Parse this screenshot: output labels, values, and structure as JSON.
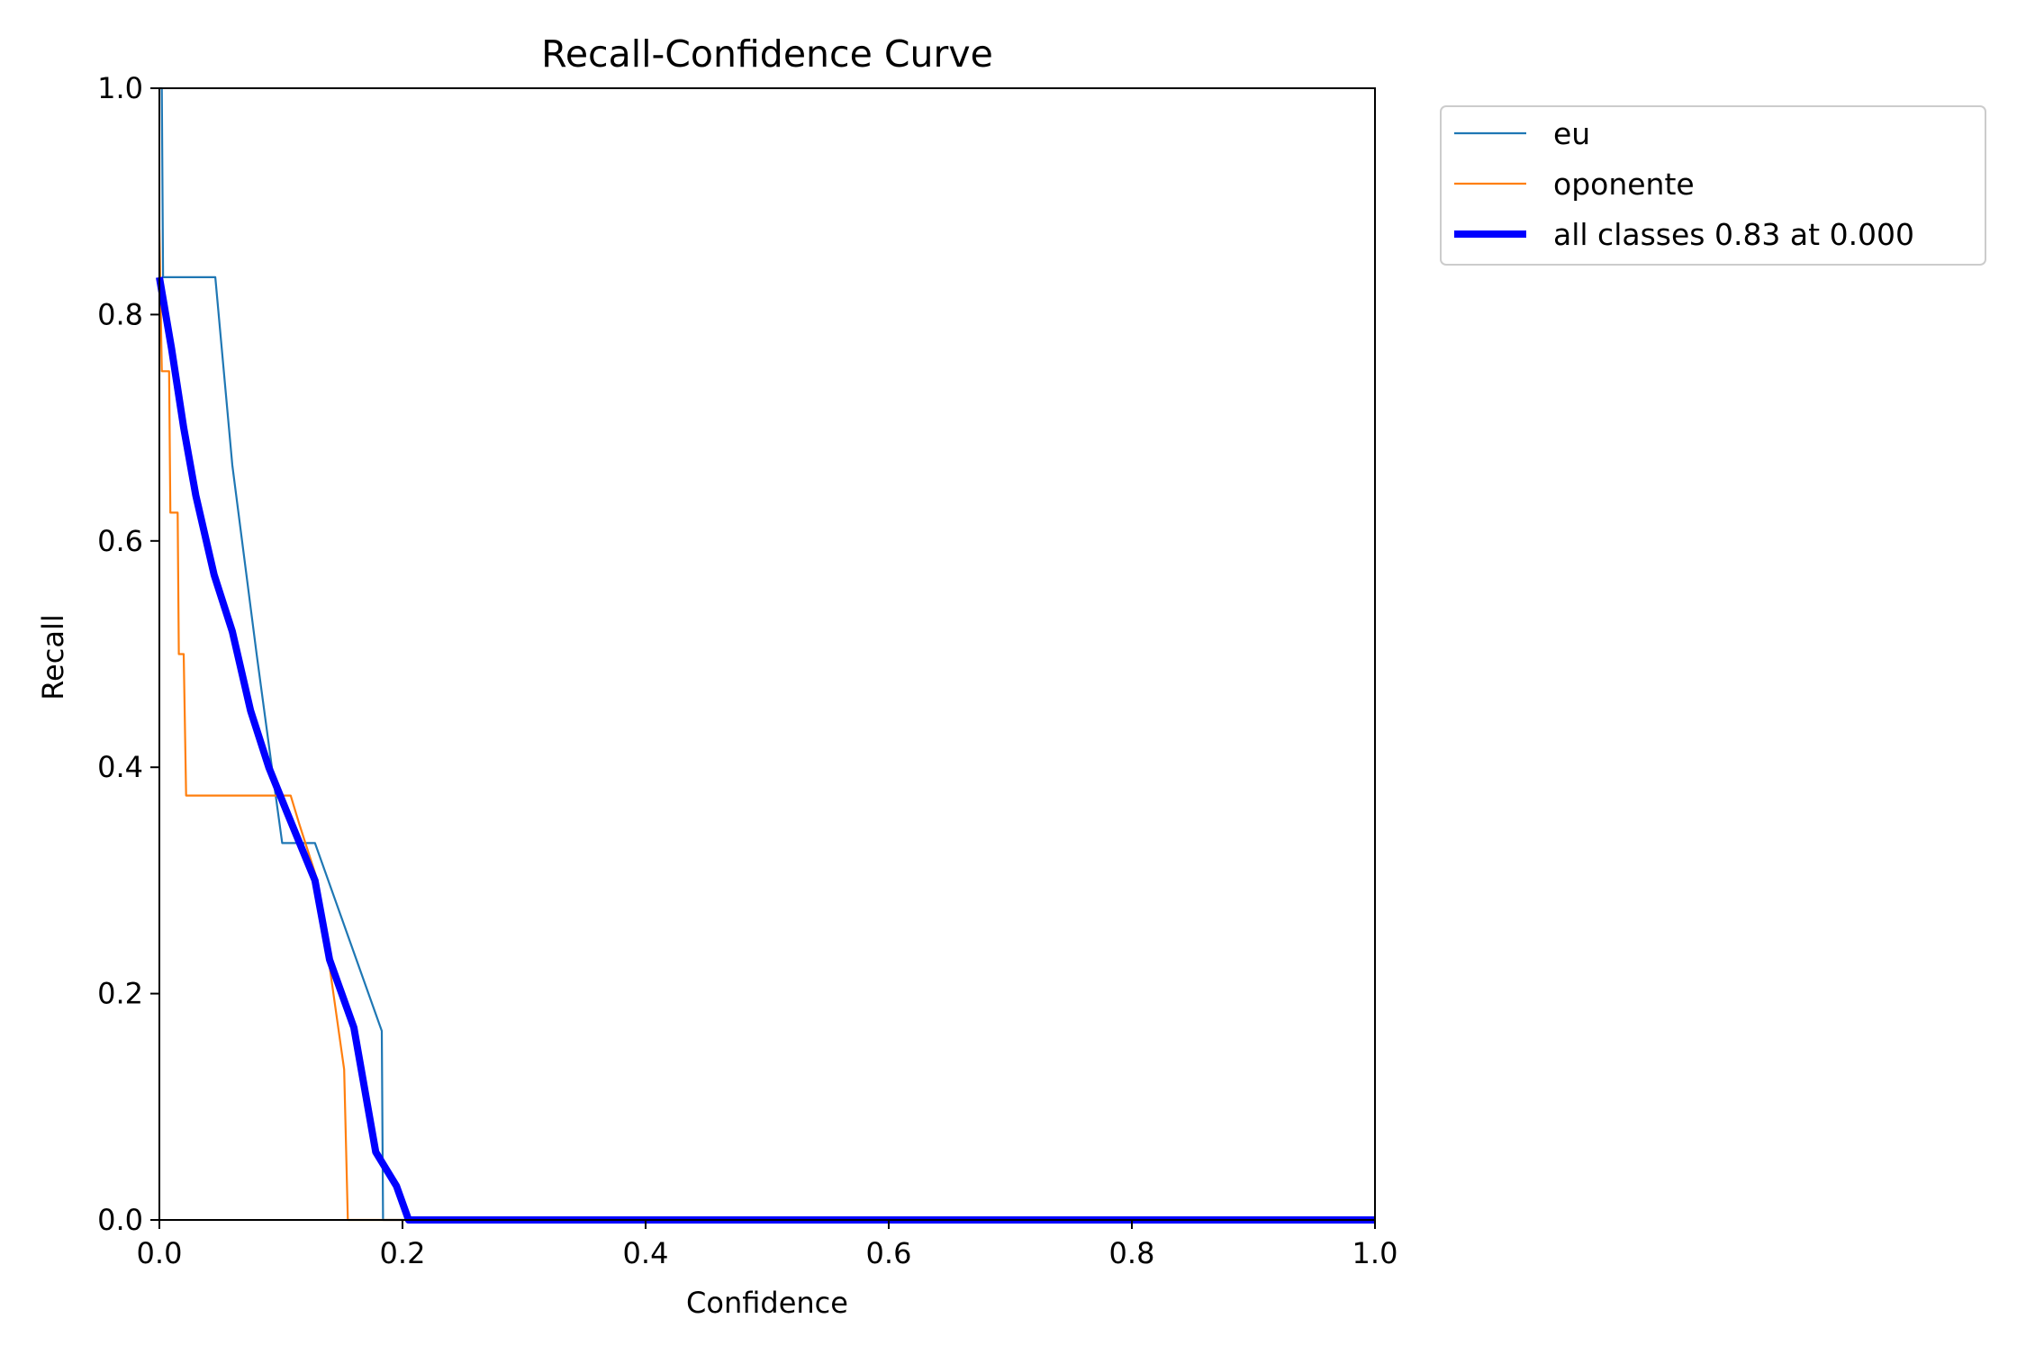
{
  "chart_data": {
    "type": "line",
    "title": "Recall-Confidence Curve",
    "xlabel": "Confidence",
    "ylabel": "Recall",
    "xlim": [
      0,
      1
    ],
    "ylim": [
      0,
      1
    ],
    "xticks": [
      "0.0",
      "0.2",
      "0.4",
      "0.6",
      "0.8",
      "1.0"
    ],
    "yticks": [
      "0.0",
      "0.2",
      "0.4",
      "0.6",
      "0.8",
      "1.0"
    ],
    "grid": false,
    "legend_position": "outside-top-right",
    "series": [
      {
        "name": "eu",
        "color": "#1f77b4",
        "points": [
          [
            0.0,
            1.0
          ],
          [
            0.002,
            1.0
          ],
          [
            0.003,
            0.833
          ],
          [
            0.046,
            0.833
          ],
          [
            0.06,
            0.667
          ],
          [
            0.08,
            0.5
          ],
          [
            0.095,
            0.38
          ],
          [
            0.101,
            0.333
          ],
          [
            0.128,
            0.333
          ],
          [
            0.183,
            0.167
          ],
          [
            0.184,
            0.0
          ],
          [
            1.0,
            0.0
          ]
        ]
      },
      {
        "name": "oponente",
        "color": "#ff7f0e",
        "points": [
          [
            0.0,
            0.875
          ],
          [
            0.002,
            0.75
          ],
          [
            0.008,
            0.75
          ],
          [
            0.009,
            0.625
          ],
          [
            0.015,
            0.625
          ],
          [
            0.016,
            0.5
          ],
          [
            0.02,
            0.5
          ],
          [
            0.022,
            0.375
          ],
          [
            0.108,
            0.375
          ],
          [
            0.115,
            0.35
          ],
          [
            0.13,
            0.3
          ],
          [
            0.152,
            0.133
          ],
          [
            0.155,
            0.0
          ],
          [
            1.0,
            0.0
          ]
        ]
      },
      {
        "name": "all classes 0.83 at 0.000",
        "color": "#0000ff",
        "points": [
          [
            0.0,
            0.833
          ],
          [
            0.01,
            0.77
          ],
          [
            0.02,
            0.7
          ],
          [
            0.03,
            0.64
          ],
          [
            0.045,
            0.57
          ],
          [
            0.06,
            0.52
          ],
          [
            0.075,
            0.45
          ],
          [
            0.09,
            0.4
          ],
          [
            0.105,
            0.36
          ],
          [
            0.128,
            0.3
          ],
          [
            0.14,
            0.23
          ],
          [
            0.16,
            0.17
          ],
          [
            0.178,
            0.06
          ],
          [
            0.195,
            0.03
          ],
          [
            0.205,
            0.0
          ],
          [
            1.0,
            0.0
          ]
        ]
      }
    ]
  }
}
